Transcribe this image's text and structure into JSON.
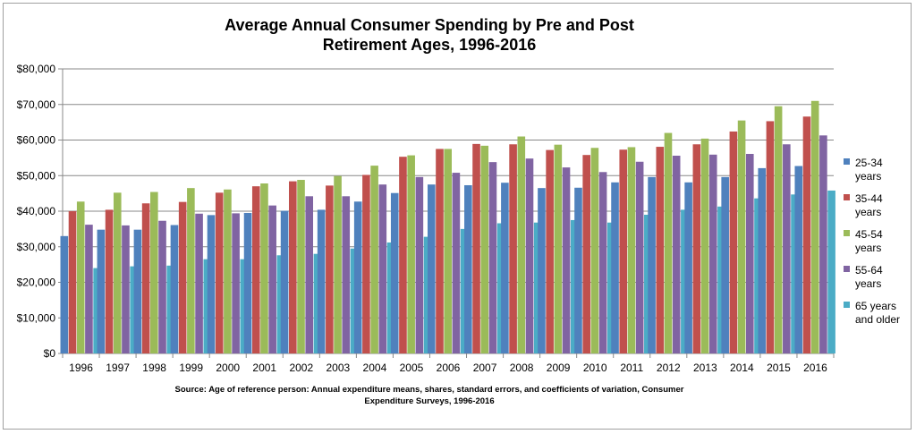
{
  "chart_data": {
    "type": "bar",
    "title": [
      "Average Annual Consumer Spending by Pre and Post",
      "Retirement Ages, 1996-2016"
    ],
    "xlabel": "",
    "ylabel": "",
    "ylim": [
      0,
      80000
    ],
    "yticks": [
      0,
      10000,
      20000,
      30000,
      40000,
      50000,
      60000,
      70000,
      80000
    ],
    "ytick_labels": [
      "$0",
      "$10,000",
      "$20,000",
      "$30,000",
      "$40,000",
      "$50,000",
      "$60,000",
      "$70,000",
      "$80,000"
    ],
    "grid": true,
    "legend_position": "right",
    "categories": [
      "1996",
      "1997",
      "1998",
      "1999",
      "2000",
      "2001",
      "2002",
      "2003",
      "2004",
      "2005",
      "2006",
      "2007",
      "2008",
      "2009",
      "2010",
      "2011",
      "2012",
      "2013",
      "2014",
      "2015",
      "2016"
    ],
    "series": [
      {
        "name": "25-34 years",
        "legend_lines": [
          "25-34",
          "years"
        ],
        "color": "#4F81BD",
        "values": [
          33000,
          34800,
          34800,
          36100,
          38900,
          39500,
          40100,
          40400,
          42700,
          45100,
          47500,
          47300,
          48000,
          46500,
          46600,
          48100,
          49600,
          48100,
          49600,
          52100,
          52700
        ]
      },
      {
        "name": "35-44 years",
        "legend_lines": [
          "35-44",
          "years"
        ],
        "color": "#C0504D",
        "values": [
          40000,
          40400,
          42200,
          42600,
          45200,
          47000,
          48400,
          47200,
          50200,
          55300,
          57500,
          58900,
          58800,
          57200,
          55800,
          57300,
          58100,
          58800,
          62400,
          65300,
          66600
        ]
      },
      {
        "name": "45-54 years",
        "legend_lines": [
          "45-54",
          "years"
        ],
        "color": "#9BBB59",
        "values": [
          42700,
          45200,
          45400,
          46500,
          46100,
          47800,
          48800,
          49900,
          52800,
          55700,
          57500,
          58400,
          61000,
          58700,
          57800,
          58000,
          62000,
          60400,
          65500,
          69500,
          71000
        ]
      },
      {
        "name": "55-64 years",
        "legend_lines": [
          "55-64",
          "years"
        ],
        "color": "#8064A2",
        "values": [
          36200,
          36000,
          37300,
          39300,
          39400,
          41600,
          44200,
          44200,
          47500,
          49600,
          50800,
          53800,
          54800,
          52300,
          51000,
          53900,
          55600,
          55900,
          56100,
          58800,
          61300
        ]
      },
      {
        "name": "65 years and older",
        "legend_lines": [
          "65 years",
          "and older"
        ],
        "color": "#4BACC6",
        "values": [
          24000,
          24500,
          24700,
          26500,
          26500,
          27600,
          28000,
          29500,
          31200,
          32800,
          35000,
          36600,
          36800,
          37500,
          36800,
          39000,
          40400,
          41300,
          43600,
          44700,
          45800
        ]
      }
    ],
    "source": [
      "Source: Age of reference person: Annual  expenditure means, shares, standard  errors, and coefficients  of variation,  Consumer",
      "Expenditure Surveys,  1996-2016"
    ]
  }
}
